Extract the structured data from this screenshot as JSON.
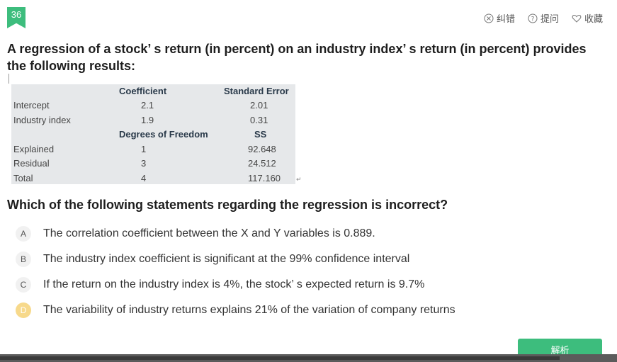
{
  "question": {
    "number": "36",
    "title": "A regression of a stock’ s return (in percent) on an industry index’ s return (in percent) provides the following results:",
    "prompt": "Which of the following statements regarding the regression is incorrect?"
  },
  "toolbar": {
    "report_error": "纠错",
    "ask_question": "提问",
    "favorite": "收藏"
  },
  "results_table": {
    "headers1": [
      "Coefficient",
      "Standard Error"
    ],
    "rows1": [
      {
        "label": "Intercept",
        "a": "2.1",
        "b": "2.01"
      },
      {
        "label": "Industry index",
        "a": "1.9",
        "b": "0.31"
      }
    ],
    "headers2": [
      "Degrees of Freedom",
      "SS"
    ],
    "rows2": [
      {
        "label": "Explained",
        "a": "1",
        "b": "92.648"
      },
      {
        "label": "Residual",
        "a": "3",
        "b": "24.512"
      },
      {
        "label": "Total",
        "a": "4",
        "b": "117.160"
      }
    ]
  },
  "options": [
    {
      "letter": "A",
      "text": "The correlation coefficient between the X and Y variables is 0.889."
    },
    {
      "letter": "B",
      "text": "The industry index coefficient is significant at the 99% confidence interval"
    },
    {
      "letter": "C",
      "text": "If the return on the industry index is 4%, the stock’ s expected return is 9.7%"
    },
    {
      "letter": "D",
      "text": "The variability of industry returns explains 21% of the variation of company returns"
    }
  ],
  "selected_option": "D",
  "analysis_button": "解析",
  "colors": {
    "accent": "#3dbd7d",
    "selected": "#f7d98b",
    "table_bg": "#e6e8ea"
  }
}
